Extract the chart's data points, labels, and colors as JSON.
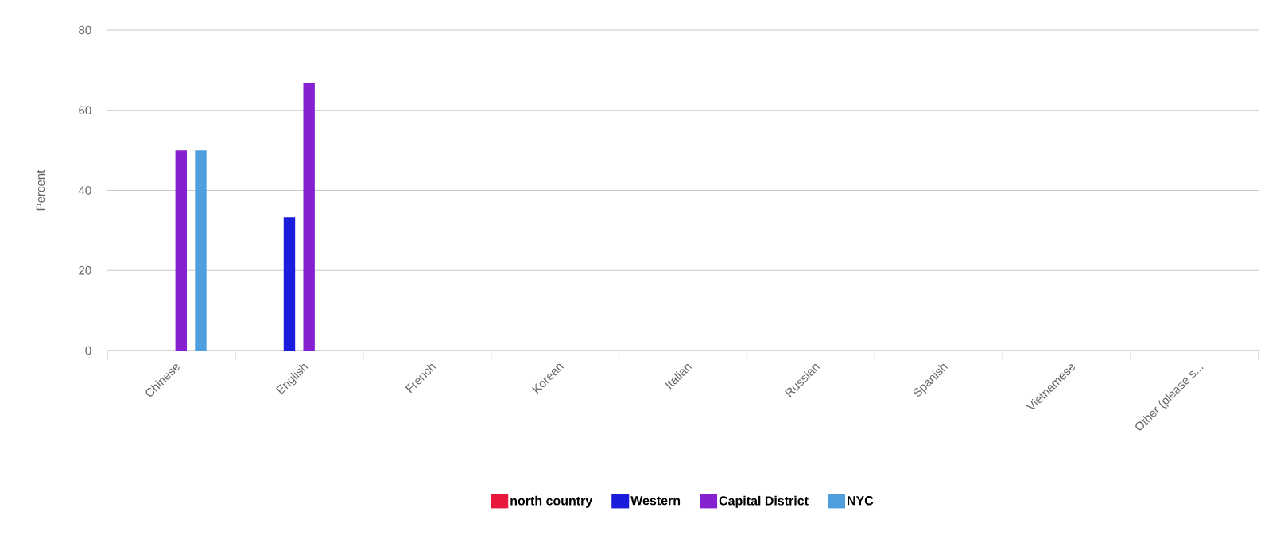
{
  "chart_data": {
    "type": "bar",
    "ylabel": "Percent",
    "categories": [
      "Chinese",
      "English",
      "French",
      "Korean",
      "Italian",
      "Russian",
      "Spanish",
      "Vietnamese",
      "Other (please s..."
    ],
    "series": [
      {
        "name": "north country",
        "color": "#e8193c",
        "values": [
          0,
          0,
          0,
          0,
          0,
          0,
          0,
          0,
          0
        ]
      },
      {
        "name": "Western",
        "color": "#1b1bdc",
        "values": [
          0,
          33.3,
          0,
          0,
          0,
          0,
          0,
          0,
          0
        ]
      },
      {
        "name": "Capital District",
        "color": "#8621d1",
        "values": [
          50,
          66.7,
          0,
          0,
          0,
          0,
          0,
          0,
          0
        ]
      },
      {
        "name": "NYC",
        "color": "#4f9fdf",
        "values": [
          50,
          0,
          0,
          0,
          0,
          0,
          0,
          0,
          0
        ]
      }
    ],
    "ylim": [
      0,
      80
    ],
    "yticks": [
      0,
      20,
      40,
      60,
      80
    ],
    "grid": "y",
    "legend": "bottom"
  }
}
